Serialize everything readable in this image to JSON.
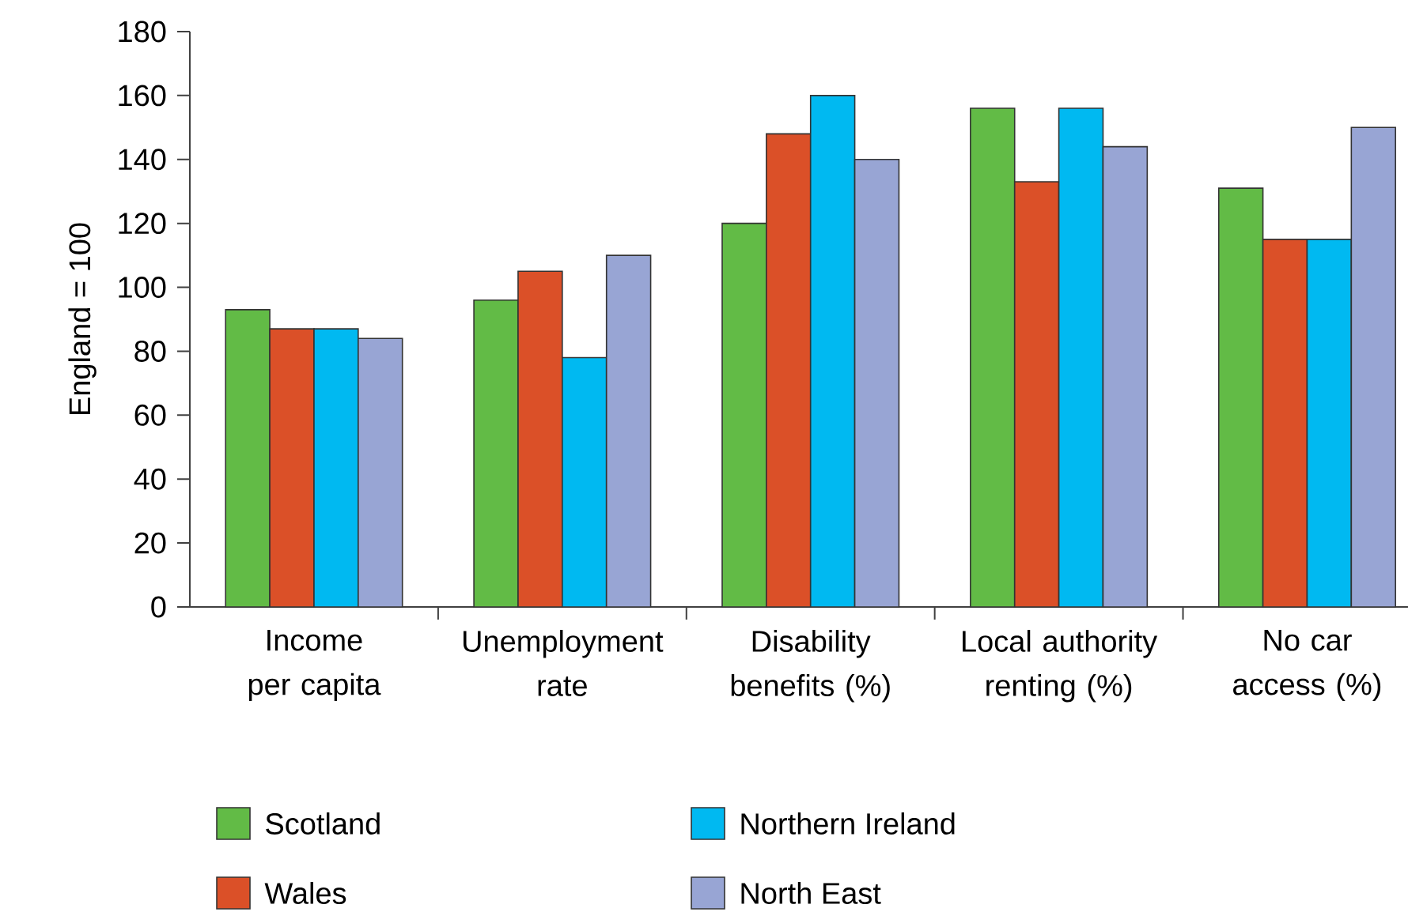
{
  "chart_data": {
    "type": "bar",
    "ylabel": "England = 100",
    "categories": [
      "Income per capita",
      "Unemployment rate",
      "Disability benefits (%)",
      "Local authority renting (%)",
      "No car access (%)"
    ],
    "series": [
      {
        "name": "Scotland",
        "color": "#62bb46",
        "values": [
          93,
          96,
          120,
          156,
          131
        ]
      },
      {
        "name": "Wales",
        "color": "#db5028",
        "values": [
          87,
          105,
          148,
          133,
          115
        ]
      },
      {
        "name": "Northern Ireland",
        "color": "#00b9f1",
        "values": [
          87,
          78,
          160,
          156,
          115
        ]
      },
      {
        "name": "North East",
        "color": "#98a5d4",
        "values": [
          84,
          110,
          140,
          144,
          150
        ]
      }
    ],
    "ylim": [
      0,
      180
    ],
    "yticks": [
      0,
      20,
      40,
      60,
      80,
      100,
      120,
      140,
      160,
      180
    ],
    "grid": false,
    "legend": "bottom"
  }
}
